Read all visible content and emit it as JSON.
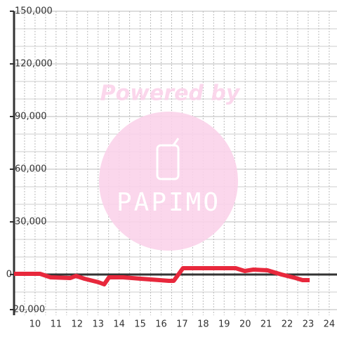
{
  "chart_data": {
    "type": "line",
    "watermark": {
      "line1": "Powered by",
      "line2": "PAPIMO"
    },
    "x": [
      9,
      10.24,
      10.74,
      11.68,
      11.95,
      12.35,
      13.02,
      13.29,
      13.52,
      14.19,
      15.03,
      16.37,
      16.6,
      17.04,
      19.55,
      19.98,
      20.39,
      21.06,
      21.73,
      22.4,
      22.73,
      23.07
    ],
    "series": [
      {
        "color": "#e8283c",
        "values": [
          400,
          400,
          -1600,
          -2000,
          -800,
          -2400,
          -4400,
          -5600,
          -1600,
          -1600,
          -2400,
          -3600,
          -3600,
          3600,
          3600,
          2000,
          2800,
          2400,
          0,
          -2000,
          -3200,
          -3200
        ]
      }
    ],
    "xlim": [
      9,
      24.37
    ],
    "xticks": [
      10,
      11,
      12,
      13,
      14,
      15,
      16,
      17,
      18,
      19,
      20,
      21,
      22,
      23,
      24
    ],
    "xminorticks": [
      9.5,
      10.5,
      11.5,
      12.5,
      13.5,
      14.5,
      15.5,
      16.5,
      17.5,
      18.5,
      19.5,
      20.5,
      21.5,
      22.5,
      23.5
    ],
    "ylim": [
      -20000,
      150000
    ],
    "yticks": [
      {
        "value": -20000,
        "label": "-20,000"
      },
      0,
      {
        "value": 30000,
        "label": "30,000"
      },
      {
        "value": 60000,
        "label": "60,000"
      },
      {
        "value": 90000,
        "label": "90,000"
      },
      {
        "value": 120000,
        "label": "120,000"
      },
      {
        "value": 150000,
        "label": "150,000"
      }
    ],
    "yminorticks": [
      -10000,
      10000,
      20000,
      40000,
      50000,
      70000,
      80000,
      100000,
      110000,
      130000,
      140000
    ],
    "grid": true
  }
}
